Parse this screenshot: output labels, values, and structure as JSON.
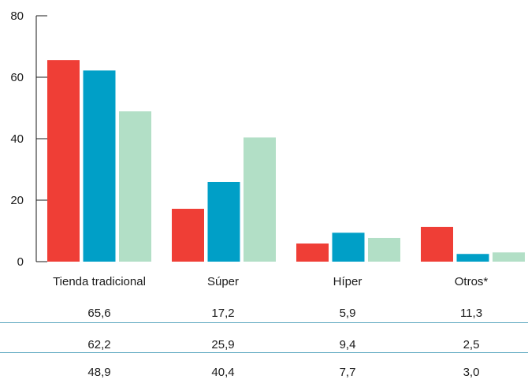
{
  "chart_data": {
    "type": "bar",
    "categories": [
      "Tienda tradicional",
      "Súper",
      "Híper",
      "Otros*"
    ],
    "series": [
      {
        "values": [
          65.6,
          17.2,
          5.9,
          11.3
        ],
        "color": "#ef3e36"
      },
      {
        "values": [
          62.2,
          25.9,
          9.4,
          2.5
        ],
        "color": "#009fc7"
      },
      {
        "values": [
          48.9,
          40.4,
          7.7,
          3.0
        ],
        "color": "#b2dfc6"
      }
    ],
    "ylim": [
      0,
      80
    ],
    "yticks": [
      0,
      20,
      40,
      60,
      80
    ],
    "grid": false,
    "table_rows": [
      [
        "65,6",
        "17,2",
        "5,9",
        "11,3"
      ],
      [
        "62,2",
        "25,9",
        "9,4",
        "2,5"
      ],
      [
        "48,9",
        "40,4",
        "7,7",
        "3,0"
      ]
    ]
  }
}
